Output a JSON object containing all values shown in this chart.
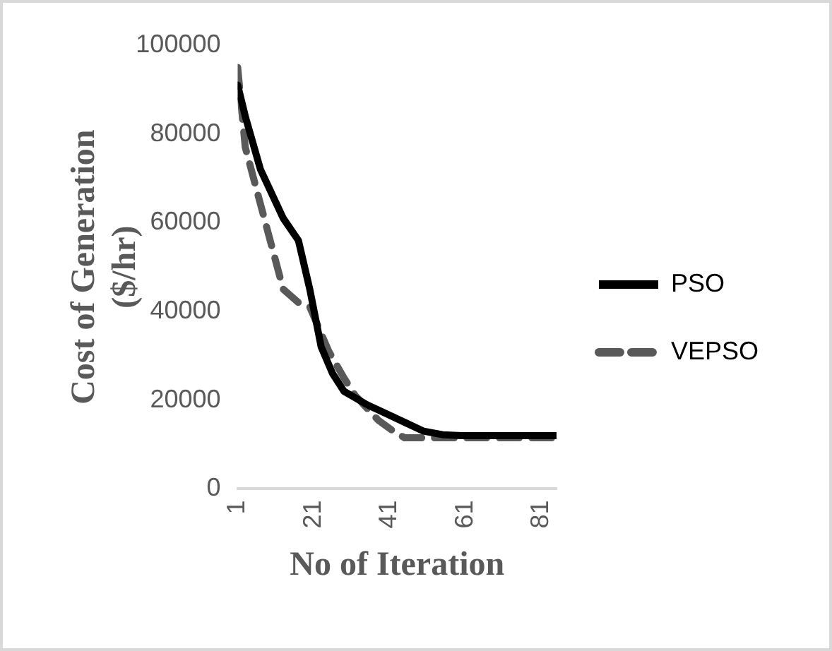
{
  "chart_data": {
    "type": "line",
    "xlabel": "No of Iteration",
    "ylabel": "Cost of Generation ($/hr)",
    "xlim": [
      1,
      85
    ],
    "xticks": [
      1,
      21,
      41,
      61,
      81
    ],
    "ylim": [
      0,
      100000
    ],
    "yticks": [
      0,
      20000,
      40000,
      60000,
      80000,
      100000
    ],
    "grid": false,
    "legend": "right",
    "marker": "none",
    "series": [
      {
        "name": "PSO",
        "color": "#000000",
        "line_style": "solid",
        "x": [
          1,
          3,
          7,
          13,
          17,
          20,
          23,
          26,
          29,
          35,
          40,
          45,
          50,
          55,
          60,
          70,
          85
        ],
        "values": [
          91000,
          84000,
          72000,
          61000,
          56000,
          45000,
          32000,
          26000,
          22000,
          19000,
          17000,
          15000,
          13000,
          12200,
          12000,
          12000,
          12000
        ]
      },
      {
        "name": "VEPSO",
        "color": "#595959",
        "line_style": "dashed",
        "x": [
          1,
          3,
          8,
          13,
          17,
          20,
          25,
          29,
          32,
          38,
          42,
          45,
          50,
          60,
          70,
          85
        ],
        "values": [
          95000,
          77000,
          61000,
          45000,
          42000,
          41000,
          31000,
          25000,
          21000,
          15500,
          13000,
          11500,
          11500,
          11500,
          11500,
          11500
        ]
      }
    ]
  }
}
